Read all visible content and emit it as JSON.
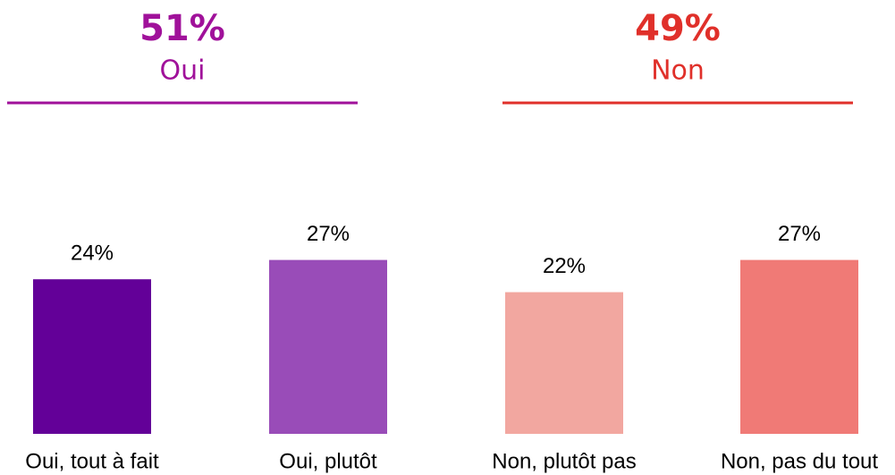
{
  "chart_data": {
    "type": "bar",
    "categories": [
      "Oui, tout à fait",
      "Oui, plutôt",
      "Non, plutôt pas",
      "Non, pas du tout"
    ],
    "values": [
      24,
      27,
      22,
      27
    ],
    "value_labels": [
      "24%",
      "27%",
      "22%",
      "27%"
    ],
    "colors": [
      "#630098",
      "#994cb8",
      "#f2a7a0",
      "#f07a76"
    ],
    "groups": [
      {
        "name": "Oui",
        "value": 51,
        "value_label": "51%",
        "color": "#a0119a"
      },
      {
        "name": "Non",
        "value": 49,
        "value_label": "49%",
        "color": "#e0302a"
      }
    ]
  }
}
